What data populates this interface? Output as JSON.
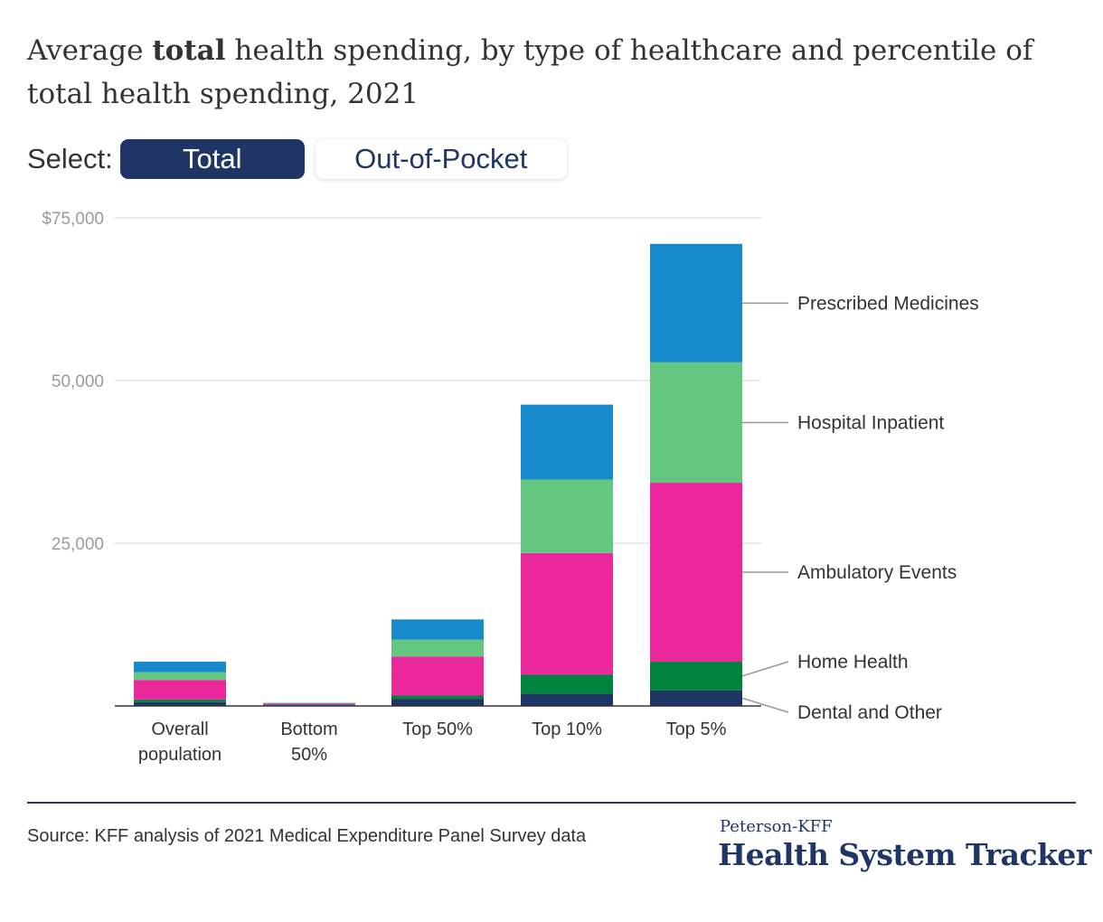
{
  "title": {
    "prefix": "Average",
    "emphasis": "total",
    "suffix": "health spending, by type of healthcare and percentile of total health spending, 2021"
  },
  "select": {
    "label": "Select:",
    "options": [
      "Total",
      "Out-of-Pocket"
    ],
    "selected": "Total"
  },
  "chart_data": {
    "type": "bar",
    "stacked": true,
    "categories": [
      "Overall population",
      "Bottom 50%",
      "Top 50%",
      "Top 10%",
      "Top 5%"
    ],
    "category_lines": [
      [
        "Overall",
        "population"
      ],
      [
        "Bottom",
        "50%"
      ],
      [
        "Top 50%"
      ],
      [
        "Top 10%"
      ],
      [
        "Top 5%"
      ]
    ],
    "series": [
      {
        "name": "Dental and Other",
        "color": "#1f3566",
        "values": [
          600,
          80,
          1100,
          1900,
          2400
        ]
      },
      {
        "name": "Home Health",
        "color": "#00843d",
        "values": [
          400,
          40,
          500,
          2900,
          4400
        ]
      },
      {
        "name": "Ambulatory Events",
        "color": "#eb279c",
        "values": [
          3000,
          230,
          6000,
          18700,
          27500
        ]
      },
      {
        "name": "Hospital Inpatient",
        "color": "#65c77f",
        "values": [
          1200,
          50,
          2600,
          11300,
          18500
        ]
      },
      {
        "name": "Prescribed Medicines",
        "color": "#178acd",
        "values": [
          1600,
          60,
          3100,
          11500,
          18200
        ]
      }
    ],
    "ylim": [
      0,
      75000
    ],
    "yticks": [
      0,
      25000,
      50000,
      75000
    ],
    "ytick_labels": [
      "",
      "25,000",
      "50,000",
      "$75,000"
    ],
    "grid": true,
    "legend": "right, labels aligned to the Top 5% bar"
  },
  "footer": {
    "source": "Source: KFF analysis of 2021 Medical Expenditure Panel Survey data",
    "brand_top": "Peterson-KFF",
    "brand_main": "Health System Tracker"
  }
}
